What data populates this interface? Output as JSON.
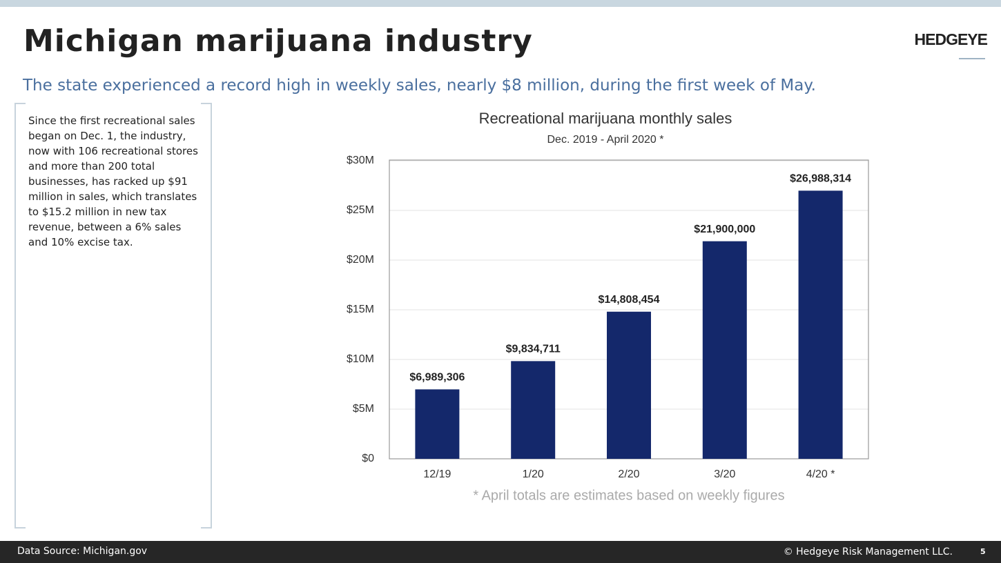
{
  "header": {
    "title": "Michigan marijuana industry",
    "logo": "HEDGEYE",
    "subtitle": "The state experienced a record high in weekly sales, nearly $8 million, during the first week of May."
  },
  "sidebar": {
    "text": "Since the first recreational sales began on Dec. 1, the industry, now with 106 recreational stores and more than 200 total businesses, has racked up $91 million in sales, which translates to $15.2 million in new tax revenue, between a 6% sales and 10% excise tax."
  },
  "chart_data": {
    "type": "bar",
    "title": "Recreational marijuana monthly sales",
    "subtitle": "Dec. 2019 - April 2020 *",
    "categories": [
      "12/19",
      "1/20",
      "2/20",
      "3/20",
      "4/20 *"
    ],
    "values": [
      6989306,
      9834711,
      14808454,
      21900000,
      26988314
    ],
    "value_labels": [
      "$6,989,306",
      "$9,834,711",
      "$14,808,454",
      "$21,900,000",
      "$26,988,314"
    ],
    "color": "#14286b",
    "ylim": [
      0,
      30000000
    ],
    "yticks": [
      {
        "value": 0,
        "label": "$0"
      },
      {
        "value": 5000000,
        "label": "$5M"
      },
      {
        "value": 10000000,
        "label": "$10M"
      },
      {
        "value": 15000000,
        "label": "$15M"
      },
      {
        "value": 20000000,
        "label": "$20M"
      },
      {
        "value": 25000000,
        "label": "$25M"
      },
      {
        "value": 30000000,
        "label": "$30M"
      }
    ],
    "grid": true,
    "note": "* April totals are estimates based on weekly figures"
  },
  "footer": {
    "source": "Data Source: Michigan.gov",
    "copyright": "© Hedgeye Risk Management LLC.",
    "page": "5"
  }
}
